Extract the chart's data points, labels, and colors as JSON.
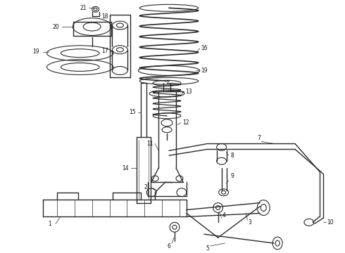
{
  "background_color": "#ffffff",
  "line_color": "#2a2a2a",
  "label_color": "#111111",
  "fig_width": 4.9,
  "fig_height": 3.6,
  "dpi": 100
}
